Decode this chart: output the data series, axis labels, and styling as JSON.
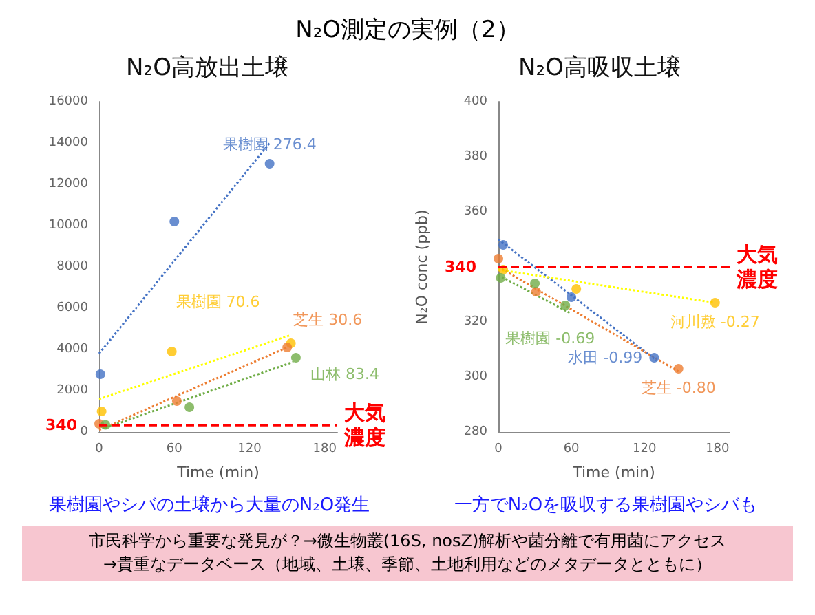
{
  "chart_data": [
    {
      "type": "scatter",
      "title": "N₂O高放出土壌",
      "xlabel": "Time (min)",
      "xlim": [
        0,
        190
      ],
      "xticks": [
        0,
        60,
        120,
        180
      ],
      "ylim": [
        0,
        16000
      ],
      "yticks": [
        0,
        2000,
        4000,
        6000,
        8000,
        10000,
        12000,
        14000,
        16000
      ],
      "grid": false,
      "legend": false,
      "marker": "circle",
      "annotations": [
        "N₂O測定の実例（2）",
        "果樹園やシバの土壌から大量のN₂O発生",
        "大気濃度"
      ],
      "ref_lines": [
        {
          "axis": "y",
          "value": 340,
          "label": "340",
          "color": "#ff0000",
          "line_style": "dashed"
        }
      ],
      "series": [
        {
          "name": "果樹園 276.4",
          "color": "#4472c4",
          "x": [
            1,
            60,
            136
          ],
          "values": [
            2800,
            10200,
            13000
          ]
        },
        {
          "name": "果樹園 70.6",
          "color": "#ffc000",
          "x": [
            2,
            58,
            153
          ],
          "values": [
            1000,
            3900,
            4300
          ]
        },
        {
          "name": "芝生 30.6",
          "color": "#ed7d31",
          "x": [
            0,
            62,
            150
          ],
          "values": [
            400,
            1500,
            4100
          ]
        },
        {
          "name": "山林 83.4",
          "color": "#70ad47",
          "x": [
            5,
            72,
            157
          ],
          "values": [
            350,
            1200,
            3600
          ]
        },
        {
          "type": "line",
          "color": "#4472c4",
          "line_style": "dotted",
          "marker": "none",
          "x": [
            0,
            136
          ],
          "values": [
            3800,
            14000
          ]
        },
        {
          "type": "line",
          "color": "#ffff00",
          "line_style": "dotted",
          "marker": "none",
          "x": [
            0,
            153
          ],
          "values": [
            1600,
            4700
          ]
        },
        {
          "type": "line",
          "color": "#ed7d31",
          "line_style": "dotted",
          "marker": "none",
          "x": [
            0,
            150
          ],
          "values": [
            100,
            4100
          ]
        },
        {
          "type": "line",
          "color": "#70ad47",
          "line_style": "dotted",
          "marker": "none",
          "x": [
            5,
            155
          ],
          "values": [
            200,
            3400
          ]
        }
      ]
    },
    {
      "type": "scatter",
      "title": "N₂O高吸収土壌",
      "xlabel": "Time (min)",
      "ylabel": "N₂O conc (ppb)",
      "xlim": [
        0,
        190
      ],
      "xticks": [
        0,
        60,
        120,
        180
      ],
      "ylim": [
        280,
        400
      ],
      "yticks": [
        280,
        300,
        320,
        360,
        380,
        400
      ],
      "grid": false,
      "legend": false,
      "marker": "circle",
      "annotations": [
        "一方でN₂Oを吸収する果樹園やシバも",
        "市民科学から重要な発見が？→微生物叢(16S, nosZ)解析や菌分離で有用菌にアクセス",
        "→貴重なデータベース（地域、土壌、季節、土地利用などのメタデータとともに）",
        "大気濃度"
      ],
      "ref_lines": [
        {
          "axis": "y",
          "value": 340,
          "label": "340",
          "color": "#ff0000",
          "line_style": "dashed"
        }
      ],
      "series": [
        {
          "name": "水田 -0.99",
          "color": "#4472c4",
          "x": [
            4,
            60,
            128
          ],
          "values": [
            348,
            329,
            307
          ]
        },
        {
          "name": "河川敷 -0.27",
          "color": "#ffc000",
          "x": [
            4,
            64,
            178
          ],
          "values": [
            339,
            332,
            327
          ]
        },
        {
          "name": "芝生 -0.80",
          "color": "#ed7d31",
          "x": [
            0,
            31,
            148
          ],
          "values": [
            343,
            331,
            303
          ]
        },
        {
          "name": "果樹園 -0.69",
          "color": "#70ad47",
          "x": [
            2,
            30,
            55
          ],
          "values": [
            336,
            334,
            326
          ]
        },
        {
          "type": "line",
          "color": "#4472c4",
          "line_style": "dotted",
          "marker": "none",
          "x": [
            0,
            130
          ],
          "values": [
            350,
            306
          ]
        },
        {
          "type": "line",
          "color": "#ffff00",
          "line_style": "dotted",
          "marker": "none",
          "x": [
            0,
            178
          ],
          "values": [
            339,
            327
          ]
        },
        {
          "type": "line",
          "color": "#ed7d31",
          "line_style": "dotted",
          "marker": "none",
          "x": [
            0,
            148
          ],
          "values": [
            340,
            302
          ]
        },
        {
          "type": "line",
          "color": "#70ad47",
          "line_style": "dotted",
          "marker": "none",
          "x": [
            0,
            60
          ],
          "values": [
            337,
            323
          ]
        }
      ]
    }
  ]
}
